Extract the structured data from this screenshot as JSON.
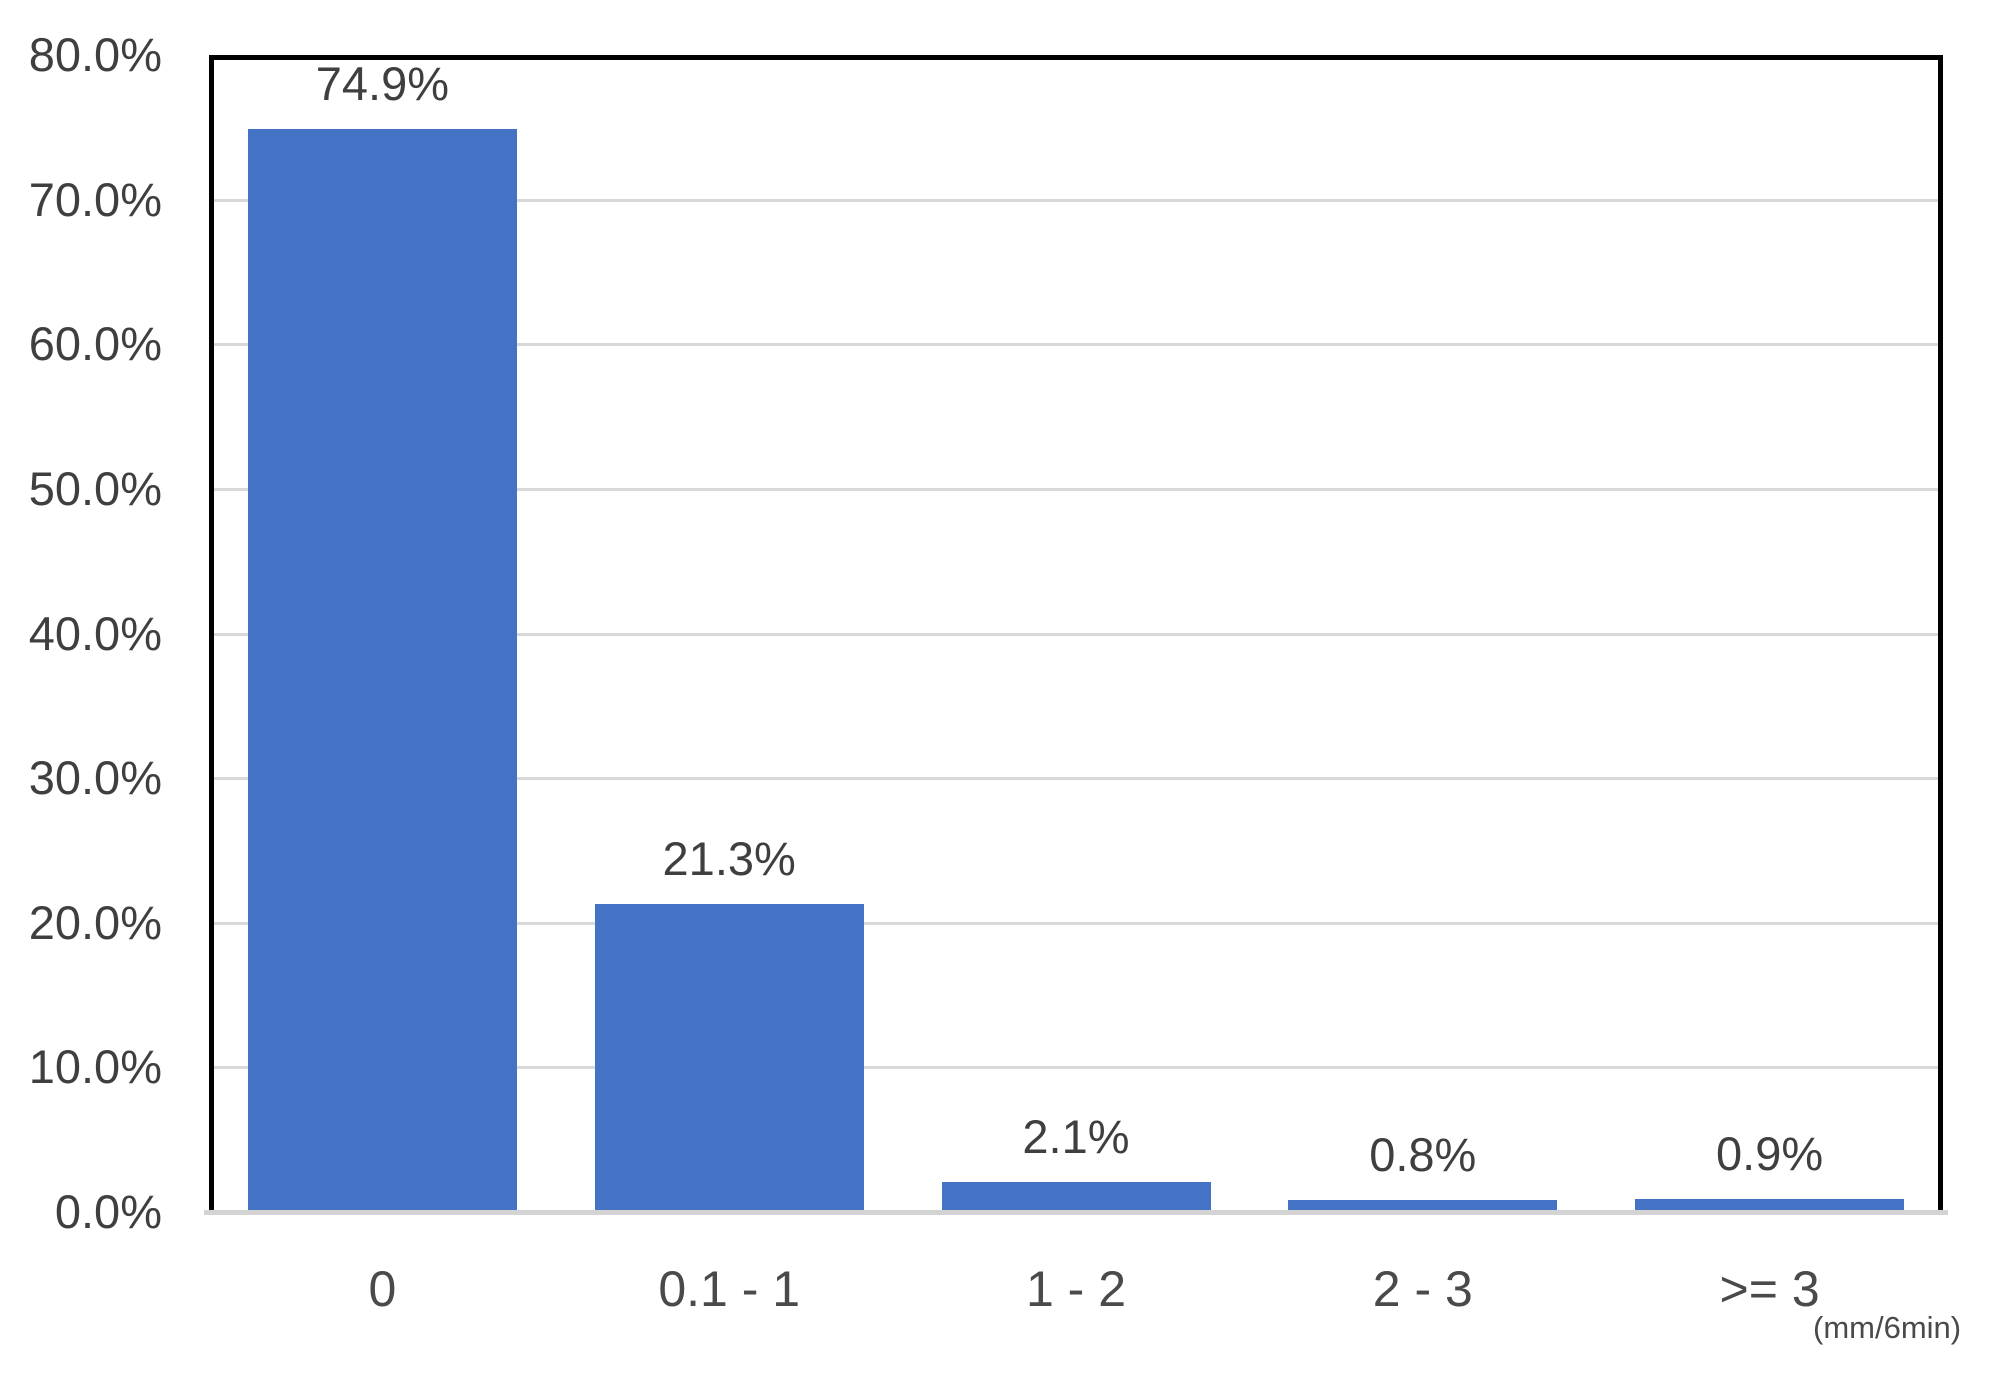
{
  "chart_data": {
    "type": "bar",
    "categories": [
      "0",
      "0.1 - 1",
      "1 - 2",
      "2 - 3",
      ">= 3"
    ],
    "values": [
      74.9,
      21.3,
      2.1,
      0.8,
      0.9
    ],
    "data_labels": [
      "74.9%",
      "21.3%",
      "2.1%",
      "0.8%",
      "0.9%"
    ],
    "title": "",
    "xlabel": "",
    "ylabel": "",
    "x_axis_note": "(mm/6min)",
    "ylim": [
      0,
      80
    ],
    "ytick_step": 10,
    "ytick_labels": [
      "0.0%",
      "10.0%",
      "20.0%",
      "30.0%",
      "40.0%",
      "50.0%",
      "60.0%",
      "70.0%",
      "80.0%"
    ],
    "grid": true,
    "legend": false,
    "colors": {
      "bar": "#4472C4",
      "gridline": "#D9D9D9",
      "axis_baseline": "#D3D3D3",
      "plot_border": "#000000",
      "label_text": "#3F3F3F"
    }
  }
}
